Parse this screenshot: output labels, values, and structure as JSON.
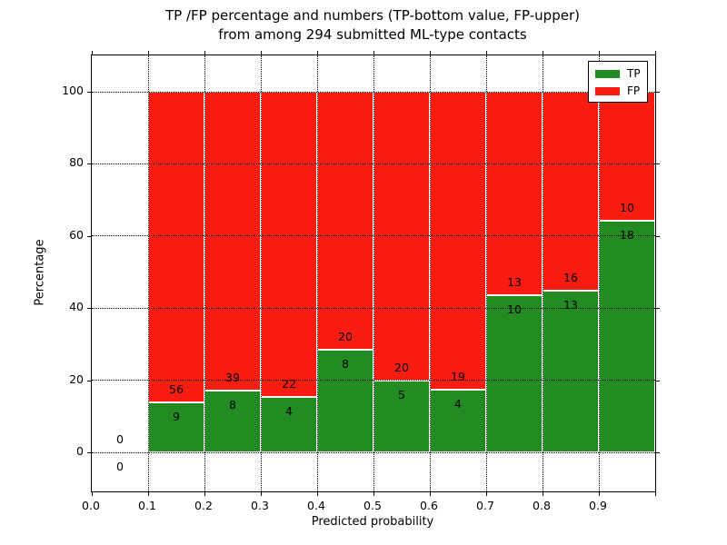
{
  "title": {
    "line1": "TP /FP percentage and numbers (TP-bottom value, FP-upper)",
    "line2": "from among 294 submitted ML-type contacts"
  },
  "axes": {
    "xlabel": "Predicted probability",
    "ylabel": "Percentage",
    "x_tick_labels": [
      "0.0",
      "0.1",
      "0.2",
      "0.3",
      "0.4",
      "0.5",
      "0.6",
      "0.7",
      "0.8",
      "0.9"
    ],
    "y_tick_labels": [
      "0",
      "20",
      "40",
      "60",
      "80",
      "100"
    ],
    "y_tick_values": [
      0,
      20,
      40,
      60,
      80,
      100
    ]
  },
  "legend": {
    "items": [
      {
        "label": "TP",
        "color": "#228b22"
      },
      {
        "label": "FP",
        "color": "#fb1c11"
      }
    ]
  },
  "colors": {
    "tp": "#228b22",
    "fp": "#fb1c11",
    "bar_edge": "#ffffff",
    "grid": "#000000",
    "background": "#ffffff"
  },
  "chart_data": {
    "type": "bar",
    "stacked": true,
    "normalized_to_percent": true,
    "title": "TP /FP percentage and numbers (TP-bottom value, FP-upper) from among 294 submitted ML-type contacts",
    "xlabel": "Predicted probability",
    "ylabel": "Percentage",
    "xlim": [
      0.0,
      1.0
    ],
    "ylim": [
      -11,
      110
    ],
    "grid": true,
    "legend_position": "upper right",
    "bin_width": 0.1,
    "bin_starts": [
      0.0,
      0.1,
      0.2,
      0.3,
      0.4,
      0.5,
      0.6,
      0.7,
      0.8,
      0.9
    ],
    "categories": [
      "0.0-0.1",
      "0.1-0.2",
      "0.2-0.3",
      "0.3-0.4",
      "0.4-0.5",
      "0.5-0.6",
      "0.6-0.7",
      "0.7-0.8",
      "0.8-0.9",
      "0.9-1.0"
    ],
    "series": [
      {
        "name": "TP",
        "counts": [
          0,
          9,
          8,
          4,
          8,
          5,
          4,
          10,
          13,
          18
        ],
        "pct": [
          0,
          13.8,
          17.0,
          15.4,
          28.6,
          20.0,
          17.4,
          43.5,
          44.8,
          64.3
        ]
      },
      {
        "name": "FP",
        "counts": [
          0,
          56,
          39,
          22,
          20,
          20,
          19,
          13,
          16,
          10
        ],
        "pct": [
          0,
          86.2,
          83.0,
          84.6,
          71.4,
          80.0,
          82.6,
          56.5,
          55.2,
          35.7
        ]
      }
    ],
    "total_contacts": 294,
    "note": "Each bin's bars sum to 100%; TP count labeled below segment boundary, FP count above; bin 0.0-0.1 has zero counts and no bar"
  }
}
